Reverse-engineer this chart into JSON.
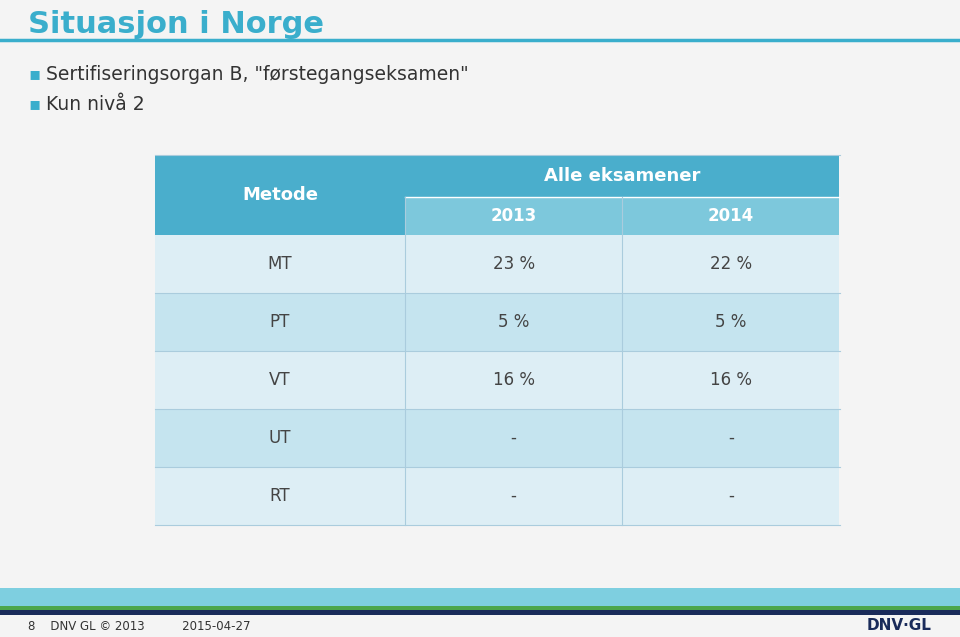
{
  "title": "Situasjon i Norge",
  "title_color": "#3AAECC",
  "title_fontsize": 22,
  "bullet1": "Sertifiseringsorgan B, \"førstegangseksamen\"",
  "bullet2": "Kun nivå 2",
  "bullet_color": "#3AAECC",
  "bullet_fontsize": 13.5,
  "bg_color": "#F4F4F4",
  "footer_lightblue": "#7ECFE0",
  "footer_green": "#4CA64C",
  "footer_navy": "#1A2B5A",
  "footer_text_left": "8    DNV GL © 2013          2015-04-27",
  "footer_logo": "DNV·GL",
  "table_header_bg": "#4AAECC",
  "table_subheader_bg": "#7DC8DC",
  "table_row_white": "#DDEEF5",
  "table_row_blue": "#C5E4EF",
  "table_header_text_color": "#FFFFFF",
  "table_data_text_color": "#444444",
  "table_header_text": "Alle eksamener",
  "table_col1_header": "Metode",
  "table_year1": "2013",
  "table_year2": "2014",
  "table_rows": [
    [
      "MT",
      "23 %",
      "22 %"
    ],
    [
      "PT",
      "5 %",
      "5 %"
    ],
    [
      "VT",
      "16 %",
      "16 %"
    ],
    [
      "UT",
      "-",
      "-"
    ],
    [
      "RT",
      "-",
      "-"
    ]
  ]
}
